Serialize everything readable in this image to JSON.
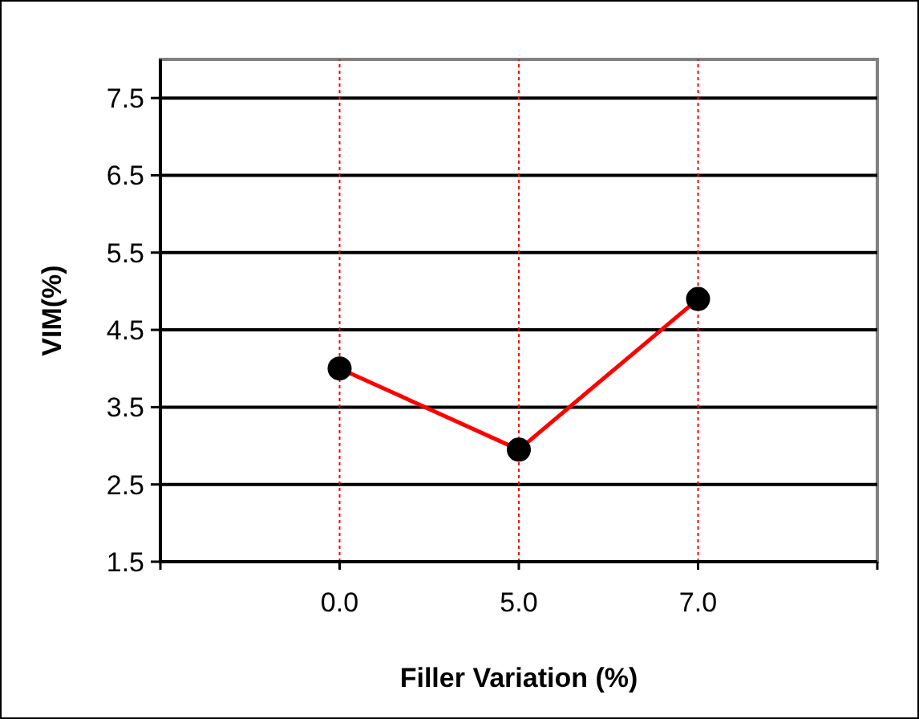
{
  "chart_data": {
    "type": "line",
    "xlabel": "Filler Variation (%)",
    "ylabel": "VIM(%)",
    "categories": [
      "0.0",
      "5.0",
      "7.0"
    ],
    "series": [
      {
        "color": "#ff0000",
        "values": [
          4.0,
          2.95,
          4.9
        ]
      }
    ],
    "ylim": [
      1.5,
      8.0
    ],
    "yticks": [
      1.5,
      2.5,
      3.5,
      4.5,
      5.5,
      6.5,
      7.5
    ],
    "grid": true,
    "marker": "circle",
    "line_style": "solid"
  }
}
